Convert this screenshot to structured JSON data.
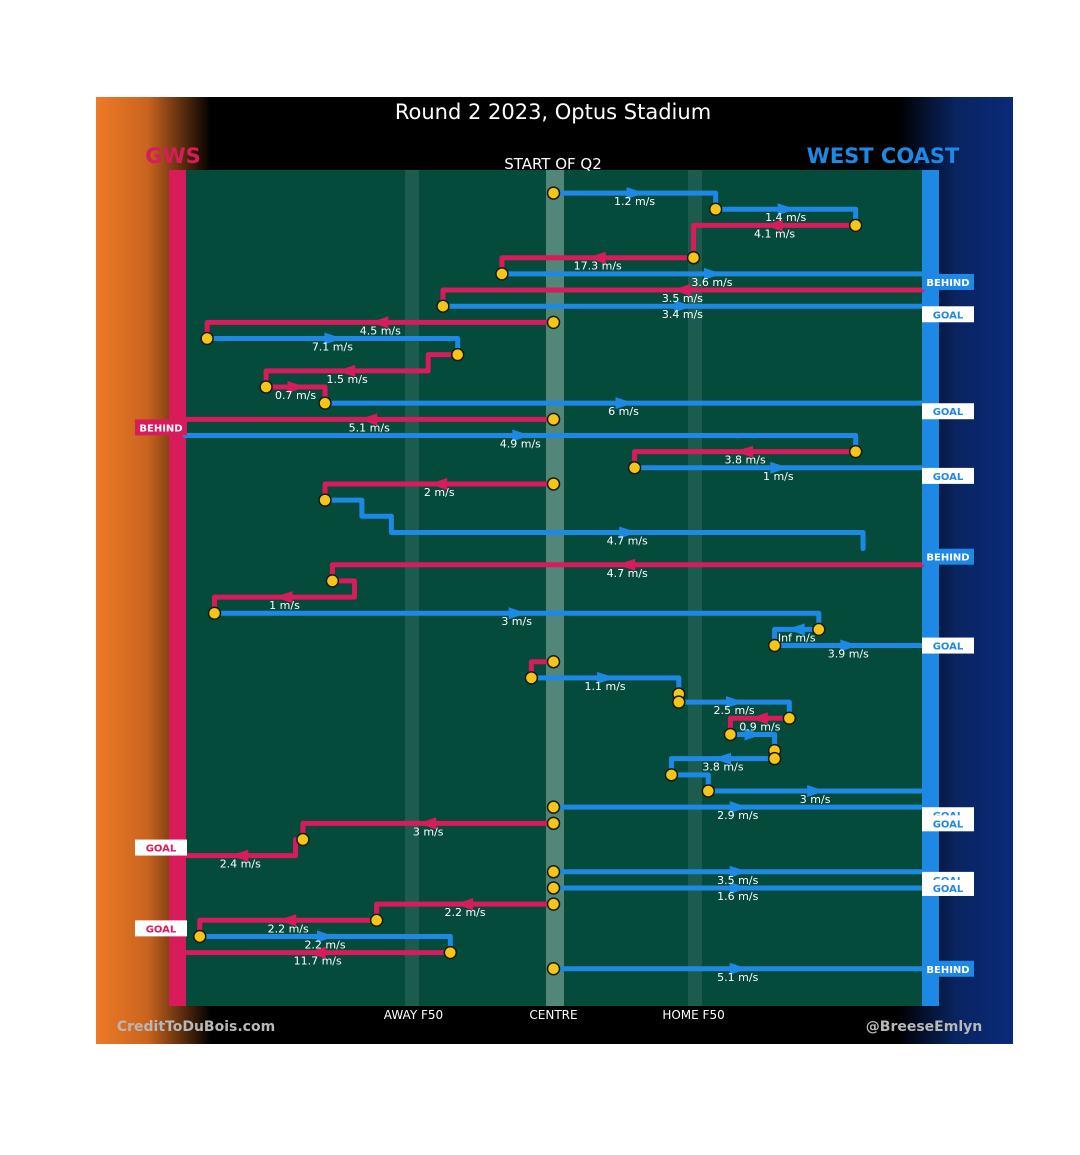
{
  "header": {
    "title": "Round 2 2023, Optus Stadium",
    "subtitle": "START OF Q2",
    "team_left": "GWS",
    "team_right": "WEST COAST",
    "credit_left": "CreditToDuBois.com",
    "credit_right": "@BreeseEmlyn"
  },
  "colors": {
    "gws": "#d81b5a",
    "west_coast": "#1e88e5",
    "field": "#044b3c",
    "ball": "#f5c518",
    "background": "#000000",
    "left_gradient": "#ee7a26",
    "right_gradient": "#0a2a7a"
  },
  "chart_data": {
    "type": "chain-flow",
    "x_axis": {
      "ticks": [
        {
          "label": "AWAY F50",
          "x": 0.31
        },
        {
          "label": "CENTRE",
          "x": 0.5
        },
        {
          "label": "HOME F50",
          "x": 0.69
        }
      ],
      "range": [
        0,
        1
      ],
      "left_team": "GWS",
      "right_team": "WEST COAST"
    },
    "outcomes": [
      {
        "label": "BEHIND",
        "team": "west_coast",
        "side": "right",
        "row": 12
      },
      {
        "label": "GOAL",
        "team": "west_coast",
        "side": "right",
        "row": 16
      },
      {
        "label": "GOAL",
        "team": "west_coast",
        "side": "right",
        "row": 28
      },
      {
        "label": "BEHIND",
        "team": "gws",
        "side": "left",
        "row": 30
      },
      {
        "label": "GOAL",
        "team": "west_coast",
        "side": "right",
        "row": 36
      },
      {
        "label": "BEHIND",
        "team": "west_coast",
        "side": "right",
        "row": 46
      },
      {
        "label": "GOAL",
        "team": "west_coast",
        "side": "right",
        "row": 57
      },
      {
        "label": "GOAL",
        "team": "west_coast",
        "side": "right",
        "row": 78
      },
      {
        "label": "GOAL",
        "team": "west_coast",
        "side": "right",
        "row": 79
      },
      {
        "label": "GOAL",
        "team": "gws",
        "side": "left",
        "row": 82
      },
      {
        "label": "GOAL",
        "team": "west_coast",
        "side": "right",
        "row": 86
      },
      {
        "label": "GOAL",
        "team": "west_coast",
        "side": "right",
        "row": 87
      },
      {
        "label": "GOAL",
        "team": "gws",
        "side": "left",
        "row": 92
      },
      {
        "label": "BEHIND",
        "team": "west_coast",
        "side": "right",
        "row": 97
      }
    ],
    "chains": [
      {
        "team": "west_coast",
        "speed": "1.2 m/s",
        "points": [
          [
            0.5,
            1
          ],
          [
            0.72,
            1
          ],
          [
            0.72,
            3
          ]
        ]
      },
      {
        "team": "west_coast",
        "speed": "1.4 m/s",
        "points": [
          [
            0.72,
            3
          ],
          [
            0.91,
            3
          ],
          [
            0.91,
            5
          ]
        ]
      },
      {
        "team": "gws",
        "speed": "4.1 m/s",
        "points": [
          [
            0.91,
            5
          ],
          [
            0.69,
            5
          ],
          [
            0.69,
            8
          ]
        ]
      },
      {
        "team": "gws",
        "speed": "17.3 m/s",
        "points": [
          [
            0.69,
            9
          ],
          [
            0.43,
            9
          ],
          [
            0.43,
            11
          ]
        ]
      },
      {
        "team": "west_coast",
        "speed": "3.6 m/s",
        "points": [
          [
            0.43,
            11
          ],
          [
            1.0,
            11
          ]
        ]
      },
      {
        "team": "gws",
        "speed": "3.5 m/s",
        "points": [
          [
            1.0,
            13
          ],
          [
            0.35,
            13
          ],
          [
            0.35,
            15
          ]
        ]
      },
      {
        "team": "west_coast",
        "speed": "3.4 m/s",
        "points": [
          [
            0.35,
            15
          ],
          [
            1.0,
            15
          ]
        ]
      },
      {
        "team": "gws",
        "speed": "4.5 m/s",
        "points": [
          [
            0.5,
            17
          ],
          [
            0.03,
            17
          ],
          [
            0.03,
            19
          ]
        ]
      },
      {
        "team": "west_coast",
        "speed": "7.1 m/s",
        "points": [
          [
            0.03,
            19
          ],
          [
            0.37,
            19
          ],
          [
            0.37,
            21
          ]
        ]
      },
      {
        "team": "gws",
        "speed": "1.5 m/s",
        "points": [
          [
            0.37,
            21
          ],
          [
            0.33,
            21
          ],
          [
            0.33,
            23
          ],
          [
            0.11,
            23
          ],
          [
            0.11,
            25
          ]
        ]
      },
      {
        "team": "gws",
        "speed": "0.7 m/s",
        "points": [
          [
            0.11,
            25
          ],
          [
            0.19,
            25
          ],
          [
            0.19,
            27
          ]
        ]
      },
      {
        "team": "west_coast",
        "speed": "6 m/s",
        "points": [
          [
            0.19,
            27
          ],
          [
            1.0,
            27
          ]
        ]
      },
      {
        "team": "gws",
        "speed": "5.1 m/s",
        "points": [
          [
            0.5,
            29
          ],
          [
            0.0,
            29
          ]
        ]
      },
      {
        "team": "west_coast",
        "speed": "4.9 m/s",
        "points": [
          [
            0.0,
            31
          ],
          [
            0.91,
            31
          ],
          [
            0.91,
            33
          ]
        ]
      },
      {
        "team": "gws",
        "speed": "3.8 m/s",
        "points": [
          [
            0.91,
            33
          ],
          [
            0.61,
            33
          ],
          [
            0.61,
            35
          ]
        ]
      },
      {
        "team": "west_coast",
        "speed": "1 m/s",
        "points": [
          [
            0.61,
            35
          ],
          [
            1.0,
            35
          ]
        ]
      },
      {
        "team": "gws",
        "speed": "2 m/s",
        "points": [
          [
            0.5,
            37
          ],
          [
            0.19,
            37
          ],
          [
            0.19,
            39
          ]
        ]
      },
      {
        "team": "west_coast",
        "speed": "4.7 m/s",
        "points": [
          [
            0.19,
            39
          ],
          [
            0.24,
            39
          ],
          [
            0.24,
            41
          ],
          [
            0.28,
            41
          ],
          [
            0.28,
            43
          ],
          [
            0.92,
            43
          ],
          [
            0.92,
            45
          ]
        ]
      },
      {
        "team": "gws",
        "speed": "4.7 m/s",
        "points": [
          [
            1.0,
            47
          ],
          [
            0.2,
            47
          ],
          [
            0.2,
            49
          ]
        ]
      },
      {
        "team": "gws",
        "speed": "1 m/s",
        "points": [
          [
            0.2,
            49
          ],
          [
            0.23,
            49
          ],
          [
            0.23,
            51
          ],
          [
            0.04,
            51
          ],
          [
            0.04,
            53
          ]
        ]
      },
      {
        "team": "west_coast",
        "speed": "3 m/s",
        "points": [
          [
            0.04,
            53
          ],
          [
            0.86,
            53
          ],
          [
            0.86,
            55
          ]
        ]
      },
      {
        "team": "west_coast",
        "speed": "Inf m/s",
        "points": [
          [
            0.86,
            55
          ],
          [
            0.8,
            55
          ],
          [
            0.8,
            57
          ]
        ]
      },
      {
        "team": "west_coast",
        "speed": "3.9 m/s",
        "points": [
          [
            0.8,
            57
          ],
          [
            1.0,
            57
          ]
        ]
      },
      {
        "team": "gws",
        "speed": "",
        "points": [
          [
            0.5,
            59
          ],
          [
            0.47,
            59
          ],
          [
            0.47,
            61
          ]
        ]
      },
      {
        "team": "west_coast",
        "speed": "1.1 m/s",
        "points": [
          [
            0.47,
            61
          ],
          [
            0.67,
            61
          ],
          [
            0.67,
            63
          ]
        ]
      },
      {
        "team": "gws",
        "speed": "",
        "points": [
          [
            0.67,
            63
          ],
          [
            0.67,
            64
          ]
        ]
      },
      {
        "team": "west_coast",
        "speed": "2.5 m/s",
        "points": [
          [
            0.67,
            64
          ],
          [
            0.82,
            64
          ],
          [
            0.82,
            66
          ]
        ]
      },
      {
        "team": "gws",
        "speed": "0.9 m/s",
        "points": [
          [
            0.82,
            66
          ],
          [
            0.74,
            66
          ],
          [
            0.74,
            68
          ]
        ]
      },
      {
        "team": "west_coast",
        "speed": "",
        "points": [
          [
            0.74,
            68
          ],
          [
            0.8,
            68
          ],
          [
            0.8,
            70
          ]
        ]
      },
      {
        "team": "gws",
        "speed": "",
        "points": [
          [
            0.8,
            70
          ],
          [
            0.8,
            71
          ]
        ]
      },
      {
        "team": "west_coast",
        "speed": "3.8 m/s",
        "points": [
          [
            0.8,
            71
          ],
          [
            0.66,
            71
          ],
          [
            0.66,
            73
          ]
        ]
      },
      {
        "team": "west_coast",
        "speed": "",
        "points": [
          [
            0.66,
            73
          ],
          [
            0.71,
            73
          ],
          [
            0.71,
            75
          ]
        ]
      },
      {
        "team": "west_coast",
        "speed": "3 m/s",
        "points": [
          [
            0.71,
            75
          ],
          [
            1.0,
            75
          ]
        ]
      },
      {
        "team": "west_coast",
        "speed": "2.9 m/s",
        "points": [
          [
            0.5,
            77
          ],
          [
            1.0,
            77
          ]
        ]
      },
      {
        "team": "gws",
        "speed": "3 m/s",
        "points": [
          [
            0.5,
            79
          ],
          [
            0.16,
            79
          ],
          [
            0.16,
            81
          ]
        ]
      },
      {
        "team": "gws",
        "speed": "2.4 m/s",
        "points": [
          [
            0.16,
            81
          ],
          [
            0.15,
            81
          ],
          [
            0.15,
            83
          ],
          [
            0.0,
            83
          ]
        ]
      },
      {
        "team": "west_coast",
        "speed": "3.5 m/s",
        "points": [
          [
            0.5,
            85
          ],
          [
            1.0,
            85
          ]
        ]
      },
      {
        "team": "west_coast",
        "speed": "1.6 m/s",
        "points": [
          [
            0.5,
            87
          ],
          [
            1.0,
            87
          ]
        ]
      },
      {
        "team": "gws",
        "speed": "2.2 m/s",
        "points": [
          [
            0.5,
            89
          ],
          [
            0.26,
            89
          ],
          [
            0.26,
            91
          ]
        ]
      },
      {
        "team": "gws",
        "speed": "2.2 m/s",
        "points": [
          [
            0.26,
            91
          ],
          [
            0.02,
            91
          ],
          [
            0.02,
            93
          ]
        ]
      },
      {
        "team": "west_coast",
        "speed": "2.2 m/s",
        "points": [
          [
            0.02,
            93
          ],
          [
            0.36,
            93
          ],
          [
            0.36,
            95
          ]
        ]
      },
      {
        "team": "gws",
        "speed": "11.7 m/s",
        "points": [
          [
            0.36,
            95
          ],
          [
            0.0,
            95
          ]
        ]
      },
      {
        "team": "west_coast",
        "speed": "5.1 m/s",
        "points": [
          [
            0.5,
            97
          ],
          [
            1.0,
            97
          ]
        ]
      }
    ]
  }
}
